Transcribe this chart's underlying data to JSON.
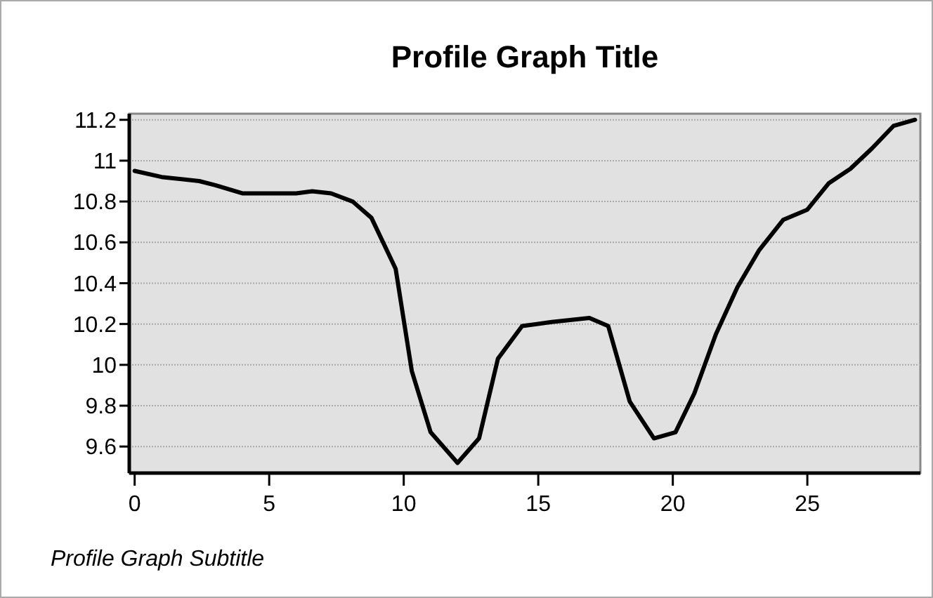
{
  "chart_data": {
    "type": "line",
    "title": "Profile Graph Title",
    "annotations": [
      "Profile Graph Subtitle"
    ],
    "x": [
      0,
      1,
      2.4,
      3,
      4,
      5,
      6,
      6.6,
      7.3,
      8.1,
      8.8,
      9.7,
      10.3,
      11,
      12,
      12.8,
      13.5,
      14.4,
      15.5,
      16.9,
      17.6,
      18.4,
      19.3,
      20.1,
      20.8,
      21.6,
      22.4,
      23.2,
      24.1,
      25,
      25.8,
      26.6,
      27.4,
      28.2,
      29
    ],
    "series": [
      {
        "color": "#000000",
        "values": [
          10.95,
          10.92,
          10.9,
          10.88,
          10.84,
          10.84,
          10.84,
          10.85,
          10.84,
          10.8,
          10.72,
          10.47,
          9.97,
          9.67,
          9.52,
          9.64,
          10.03,
          10.19,
          10.21,
          10.23,
          10.19,
          9.82,
          9.64,
          9.67,
          9.86,
          10.15,
          10.38,
          10.56,
          10.71,
          10.76,
          10.89,
          10.96,
          11.06,
          11.17,
          11.2
        ]
      }
    ],
    "xlim": [
      -0.2,
      29.2
    ],
    "xticks": [
      0,
      5,
      10,
      15,
      20,
      25
    ],
    "ylim": [
      9.47,
      11.23
    ],
    "yticks": [
      9.6,
      9.8,
      10,
      10.2,
      10.4,
      10.6,
      10.8,
      11,
      11.2
    ],
    "grid": "y",
    "marker": "none",
    "line_style": "solid"
  }
}
